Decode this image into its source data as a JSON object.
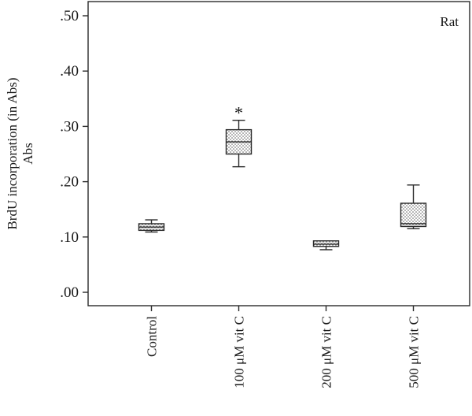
{
  "chart_data": {
    "type": "box",
    "panel_label": "Rat",
    "ylabel_line1": "BrdU incorporation (in Abs)",
    "ylabel_line2": "Abs",
    "ylim": [
      0,
      0.5
    ],
    "yticks": [
      0.0,
      0.1,
      0.2,
      0.3,
      0.4,
      0.5
    ],
    "ytick_labels": [
      ".00",
      ".10",
      ".20",
      ".30",
      ".40",
      ".50"
    ],
    "categories": [
      "Control",
      "100 μM vit C",
      "200 μM vit C",
      "500 μM vit C"
    ],
    "boxes": [
      {
        "whisker_low": 0.109,
        "q1": 0.112,
        "median": 0.118,
        "q3": 0.124,
        "whisker_high": 0.131,
        "annotation": ""
      },
      {
        "whisker_low": 0.227,
        "q1": 0.25,
        "median": 0.272,
        "q3": 0.294,
        "whisker_high": 0.311,
        "annotation": "*"
      },
      {
        "whisker_low": 0.077,
        "q1": 0.083,
        "median": 0.087,
        "q3": 0.093,
        "whisker_high": 0.093,
        "annotation": ""
      },
      {
        "whisker_low": 0.115,
        "q1": 0.119,
        "median": 0.124,
        "q3": 0.161,
        "whisker_high": 0.194,
        "annotation": ""
      }
    ],
    "grid": false,
    "legend": "none"
  }
}
